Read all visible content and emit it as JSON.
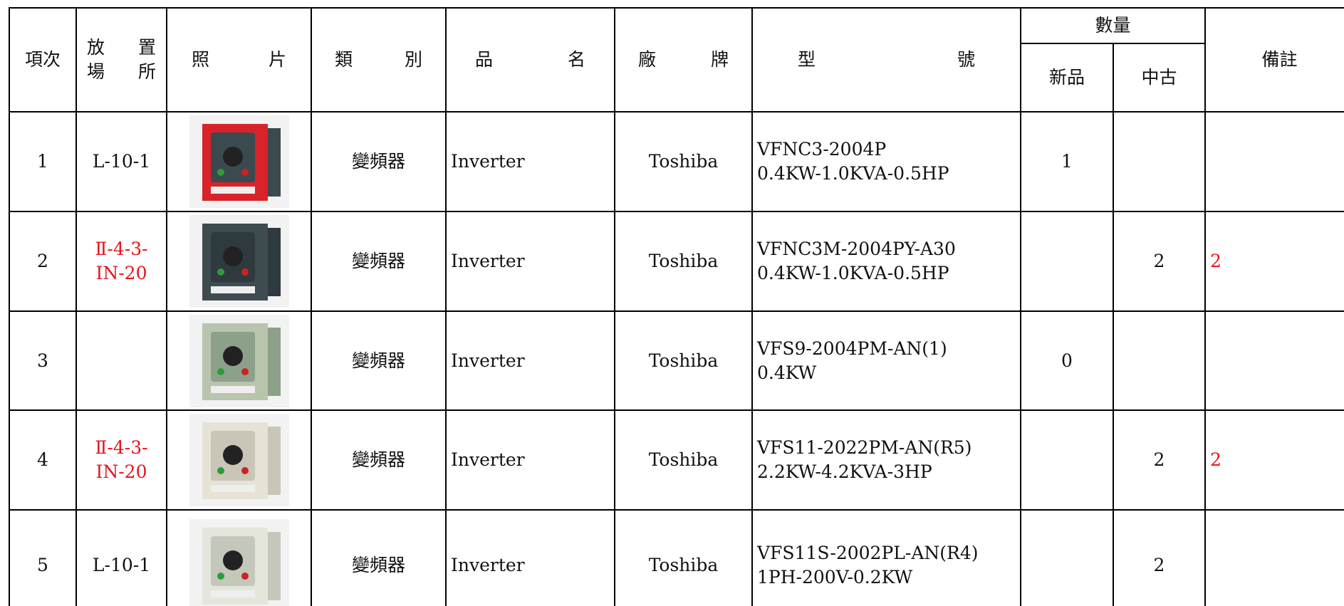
{
  "header": {
    "item": "項次",
    "location": [
      "放 置",
      "場 所"
    ],
    "photo": "照 片",
    "category": "類 別",
    "name": "品 名",
    "brand": "廠 牌",
    "model": "型 號",
    "quantity": "數量",
    "new": "新品",
    "used": "中古",
    "remark": "備註"
  },
  "rows": [
    {
      "item": 1,
      "location": [
        "L-10-1"
      ],
      "category": "變頻器",
      "name": "Inverter",
      "brand": "Toshiba",
      "model": [
        "VFNC3-2004P",
        "0.4KW-1.0KVA-0.5HP"
      ],
      "new": 1
    },
    {
      "item": 2,
      "location": [
        "Ⅱ-4-3-",
        "IN-20"
      ],
      "highlight_color": "#e8141b",
      "category": "變頻器",
      "name": "Inverter",
      "brand": "Toshiba",
      "model": [
        "VFNC3M-2004PY-A30",
        "0.4KW-1.0KVA-0.5HP"
      ],
      "used": 2,
      "remark": 2
    },
    {
      "item": 3,
      "category": "變頻器",
      "name": "Inverter",
      "brand": "Toshiba",
      "model": [
        "VFS9-2004PM-AN(1)",
        "0.4KW"
      ],
      "new": 0
    },
    {
      "item": 4,
      "location": [
        "Ⅱ-4-3-",
        "IN-20"
      ],
      "highlight_color": "#e8141b",
      "category": "變頻器",
      "name": "Inverter",
      "brand": "Toshiba",
      "model": [
        "VFS11-2022PM-AN(R5)",
        "2.2KW-4.2KVA-3HP"
      ],
      "used": 2,
      "remark": 2
    },
    {
      "item": 5,
      "location": [
        "L-10-1"
      ],
      "category": "變頻器",
      "name": "Inverter",
      "brand": "Toshiba",
      "model": [
        "VFS11S-2002PL-AN(R4)",
        "1PH-200V-0.2KW"
      ],
      "used": 2
    }
  ]
}
